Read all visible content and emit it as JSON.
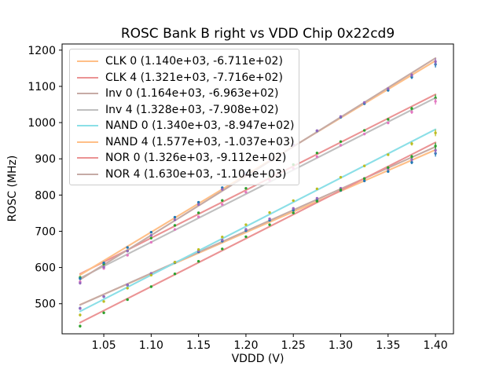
{
  "chart_data": {
    "type": "scatter",
    "title": "ROSC Bank B right vs VDD Chip 0x22cd9",
    "xlabel": "VDDD (V)",
    "ylabel": "ROSC (MHz)",
    "xlim": [
      1.006,
      1.419
    ],
    "ylim": [
      417,
      1217
    ],
    "xtick_labels": [
      "1.05",
      "1.10",
      "1.15",
      "1.20",
      "1.25",
      "1.30",
      "1.35",
      "1.40"
    ],
    "ytick_labels": [
      "500",
      "600",
      "700",
      "800",
      "900",
      "1000",
      "1100",
      "1200"
    ],
    "grid": false,
    "legend_position": "upper left",
    "x": [
      1.025,
      1.05,
      1.075,
      1.1,
      1.125,
      1.15,
      1.175,
      1.2,
      1.225,
      1.25,
      1.275,
      1.3,
      1.325,
      1.35,
      1.375,
      1.4
    ],
    "yerr": [
      4,
      2,
      2,
      2,
      2,
      2,
      2,
      2,
      3,
      2,
      2,
      2,
      2,
      3,
      5,
      9
    ],
    "fit_x_range": [
      1.025,
      1.4
    ],
    "series": [
      {
        "name": "CLK 0",
        "label": "CLK 0 (1.140e+03, -6.711e+02)",
        "slope": 1140.0,
        "intercept": -671.1,
        "fit_color": "#ffbf87",
        "point_color": "#1f77b4",
        "y": [
          487.6,
          519.8,
          551.5,
          582.6,
          613.2,
          643.3,
          672.8,
          701.8,
          730.3,
          758.3,
          785.8,
          812.7,
          839.1,
          865.0,
          890.3,
          915.1
        ]
      },
      {
        "name": "CLK 4",
        "label": "CLK 4 (1.321e+03, -7.716e+02)",
        "slope": 1321.0,
        "intercept": -771.6,
        "fit_color": "#eb9394",
        "point_color": "#2ca02c",
        "y": [
          572.6,
          609.4,
          645.6,
          681.2,
          716.3,
          751.0,
          785.0,
          818.5,
          851.5,
          884.1,
          916.1,
          947.5,
          978.4,
          1008.9,
          1038.7,
          1068.0
        ]
      },
      {
        "name": "Inv 0",
        "label": "Inv 0 (1.164e+03, -6.963e+02)",
        "slope": 1164.0,
        "intercept": -696.3,
        "fit_color": "#c6aba5",
        "point_color": "#9467bd",
        "y": [
          487.0,
          519.8,
          552.1,
          583.8,
          615.0,
          645.7,
          675.8,
          705.4,
          734.5,
          763.1,
          791.2,
          818.7,
          845.7,
          872.2,
          898.1,
          923.5
        ]
      },
      {
        "name": "Inv 4",
        "label": "Inv 4 (1.328e+03, -7.908e+02)",
        "slope": 1328.0,
        "intercept": -790.8,
        "fit_color": "#bfbfbf",
        "point_color": "#e377c2",
        "y": [
          560.6,
          597.5,
          633.9,
          669.7,
          705.0,
          739.8,
          774.0,
          807.7,
          840.9,
          873.6,
          905.8,
          937.4,
          968.5,
          999.1,
          1029.1,
          1058.6
        ]
      },
      {
        "name": "NAND 0",
        "label": "NAND 0 (1.340e+03, -8.947e+02)",
        "slope": 1340.0,
        "intercept": -894.7,
        "fit_color": "#8bdfe7",
        "point_color": "#bcbd22",
        "y": [
          469.0,
          506.2,
          542.9,
          579.0,
          614.6,
          649.7,
          684.2,
          718.2,
          751.7,
          784.7,
          817.2,
          849.1,
          880.5,
          911.4,
          941.7,
          971.5
        ]
      },
      {
        "name": "NAND 4",
        "label": "NAND 4 (1.577e+03, -1.037e+03)",
        "slope": 1577.0,
        "intercept": -1037.0,
        "fit_color": "#ffbf87",
        "point_color": "#1f77b4",
        "y": [
          569.6,
          612.8,
          655.4,
          697.4,
          738.9,
          780.0,
          820.4,
          860.3,
          899.7,
          938.7,
          977.1,
          1014.9,
          1052.2,
          1089.1,
          1125.3,
          1161.0
        ]
      },
      {
        "name": "NOR 0",
        "label": "NOR 0 (1.326e+03, -9.112e+02)",
        "slope": 1326.0,
        "intercept": -911.2,
        "fit_color": "#eb9394",
        "point_color": "#2ca02c",
        "y": [
          438.2,
          475.0,
          511.4,
          547.1,
          582.4,
          617.1,
          651.3,
          684.9,
          718.1,
          750.7,
          782.9,
          814.4,
          845.5,
          876.0,
          906.0,
          935.4
        ]
      },
      {
        "name": "NOR 4",
        "label": "NOR 4 (1.630e+03, -1.104e+03)",
        "slope": 1630.0,
        "intercept": -1104.0,
        "fit_color": "#c6aba5",
        "point_color": "#9467bd",
        "y": [
          557.0,
          601.4,
          645.4,
          688.7,
          731.6,
          773.9,
          815.7,
          856.9,
          897.7,
          937.9,
          977.7,
          1016.8,
          1055.5,
          1093.6,
          1131.2,
          1168.2
        ]
      }
    ]
  }
}
